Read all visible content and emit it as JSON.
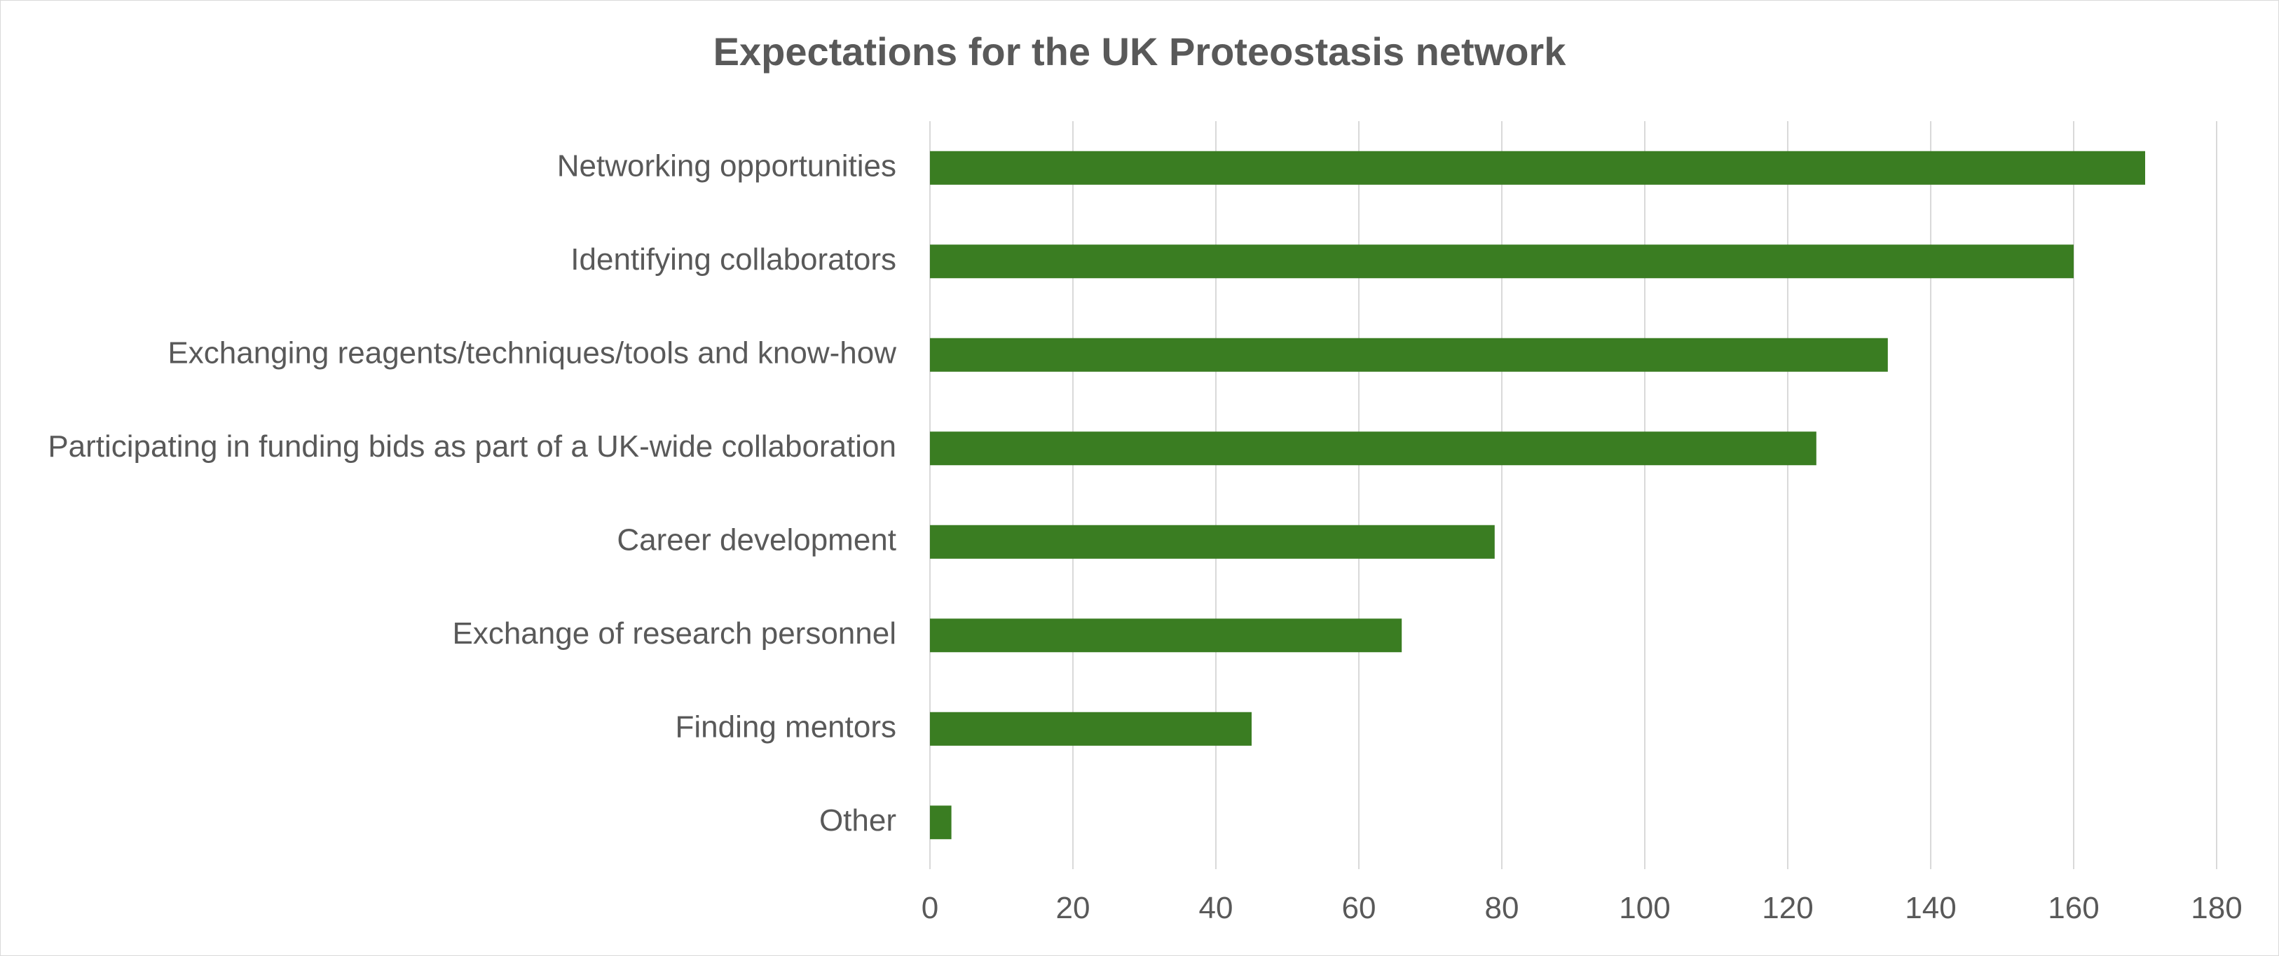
{
  "chart_data": {
    "type": "bar",
    "orientation": "horizontal",
    "title": "Expectations for the UK Proteostasis network",
    "xlabel": "",
    "ylabel": "",
    "categories": [
      "Networking opportunities",
      "Identifying collaborators",
      "Exchanging reagents/techniques/tools and know-how",
      "Participating in funding bids as part of a UK-wide collaboration",
      "Career development",
      "Exchange of research personnel",
      "Finding mentors",
      "Other"
    ],
    "values": [
      170,
      160,
      134,
      124,
      79,
      66,
      45,
      3
    ],
    "xlim": [
      0,
      180
    ],
    "xticks": [
      0,
      20,
      40,
      60,
      80,
      100,
      120,
      140,
      160,
      180
    ],
    "grid": "vertical",
    "legend": "none",
    "bar_color": "#3a7d22",
    "grid_color": "#d9d9d9"
  }
}
